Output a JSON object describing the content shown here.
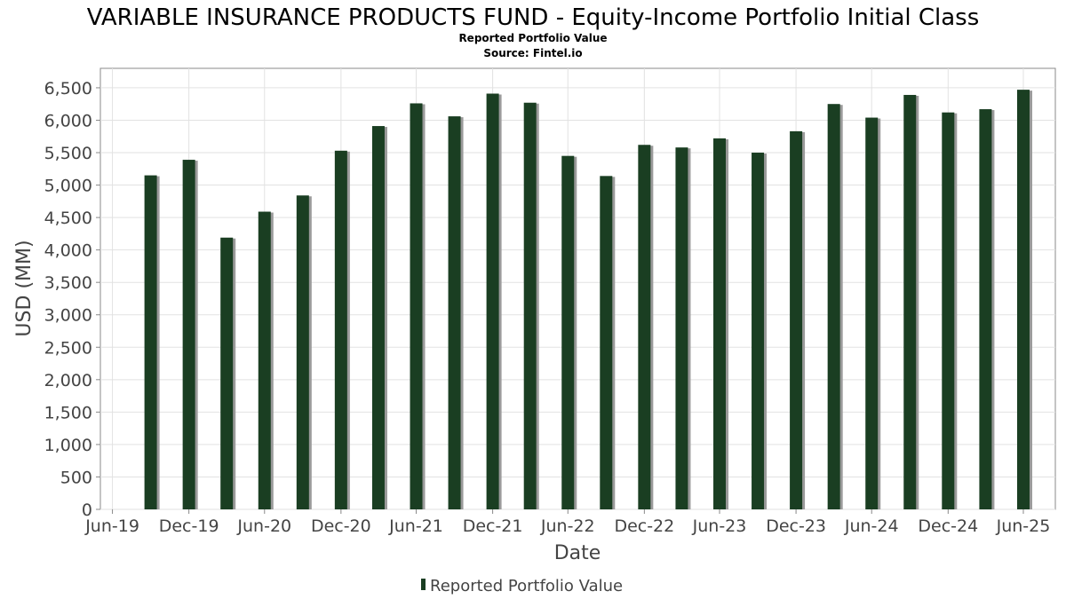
{
  "chart_data": {
    "type": "bar",
    "title": "VARIABLE INSURANCE PRODUCTS FUND - Equity-Income Portfolio Initial Class",
    "subtitle": "Reported Portfolio Value",
    "source": "Source: Fintel.io",
    "xlabel": "Date",
    "ylabel": "USD (MM)",
    "ylim": [
      0,
      6800
    ],
    "yticks": [
      0,
      500,
      1000,
      1500,
      2000,
      2500,
      3000,
      3500,
      4000,
      4500,
      5000,
      5500,
      6000,
      6500
    ],
    "ytick_labels": [
      "0",
      "500",
      "1,000",
      "1,500",
      "2,000",
      "2,500",
      "3,000",
      "3,500",
      "4,000",
      "4,500",
      "5,000",
      "5,500",
      "6,000",
      "6,500"
    ],
    "xlim": [
      "2019-06-01",
      "2025-09-15"
    ],
    "xticks": [
      "2019-06-30",
      "2019-12-31",
      "2020-06-30",
      "2020-12-31",
      "2021-06-30",
      "2021-12-31",
      "2022-06-30",
      "2022-12-31",
      "2023-06-30",
      "2023-12-31",
      "2024-06-30",
      "2024-12-31",
      "2025-06-30"
    ],
    "xtick_labels": [
      "Jun-19",
      "Dec-19",
      "Jun-20",
      "Dec-20",
      "Jun-21",
      "Dec-21",
      "Jun-22",
      "Dec-22",
      "Jun-23",
      "Dec-23",
      "Jun-24",
      "Dec-24",
      "Jun-25"
    ],
    "grid": true,
    "legend_position": "bottom",
    "series": [
      {
        "name": "Reported Portfolio Value",
        "color": "#1a3e22",
        "x": [
          "2019-09-30",
          "2019-12-31",
          "2020-03-31",
          "2020-06-30",
          "2020-09-30",
          "2020-12-31",
          "2021-03-31",
          "2021-06-30",
          "2021-09-30",
          "2021-12-31",
          "2022-03-31",
          "2022-06-30",
          "2022-09-30",
          "2022-12-31",
          "2023-03-31",
          "2023-06-30",
          "2023-09-30",
          "2023-12-31",
          "2024-03-31",
          "2024-06-30",
          "2024-09-30",
          "2024-12-31",
          "2025-03-31",
          "2025-06-30"
        ],
        "values": [
          5150,
          5390,
          4190,
          4590,
          4840,
          5530,
          5910,
          6260,
          6060,
          6410,
          6270,
          5450,
          5140,
          5620,
          5580,
          5720,
          5500,
          5830,
          6250,
          6040,
          6390,
          6120,
          6170,
          6470
        ]
      }
    ]
  }
}
